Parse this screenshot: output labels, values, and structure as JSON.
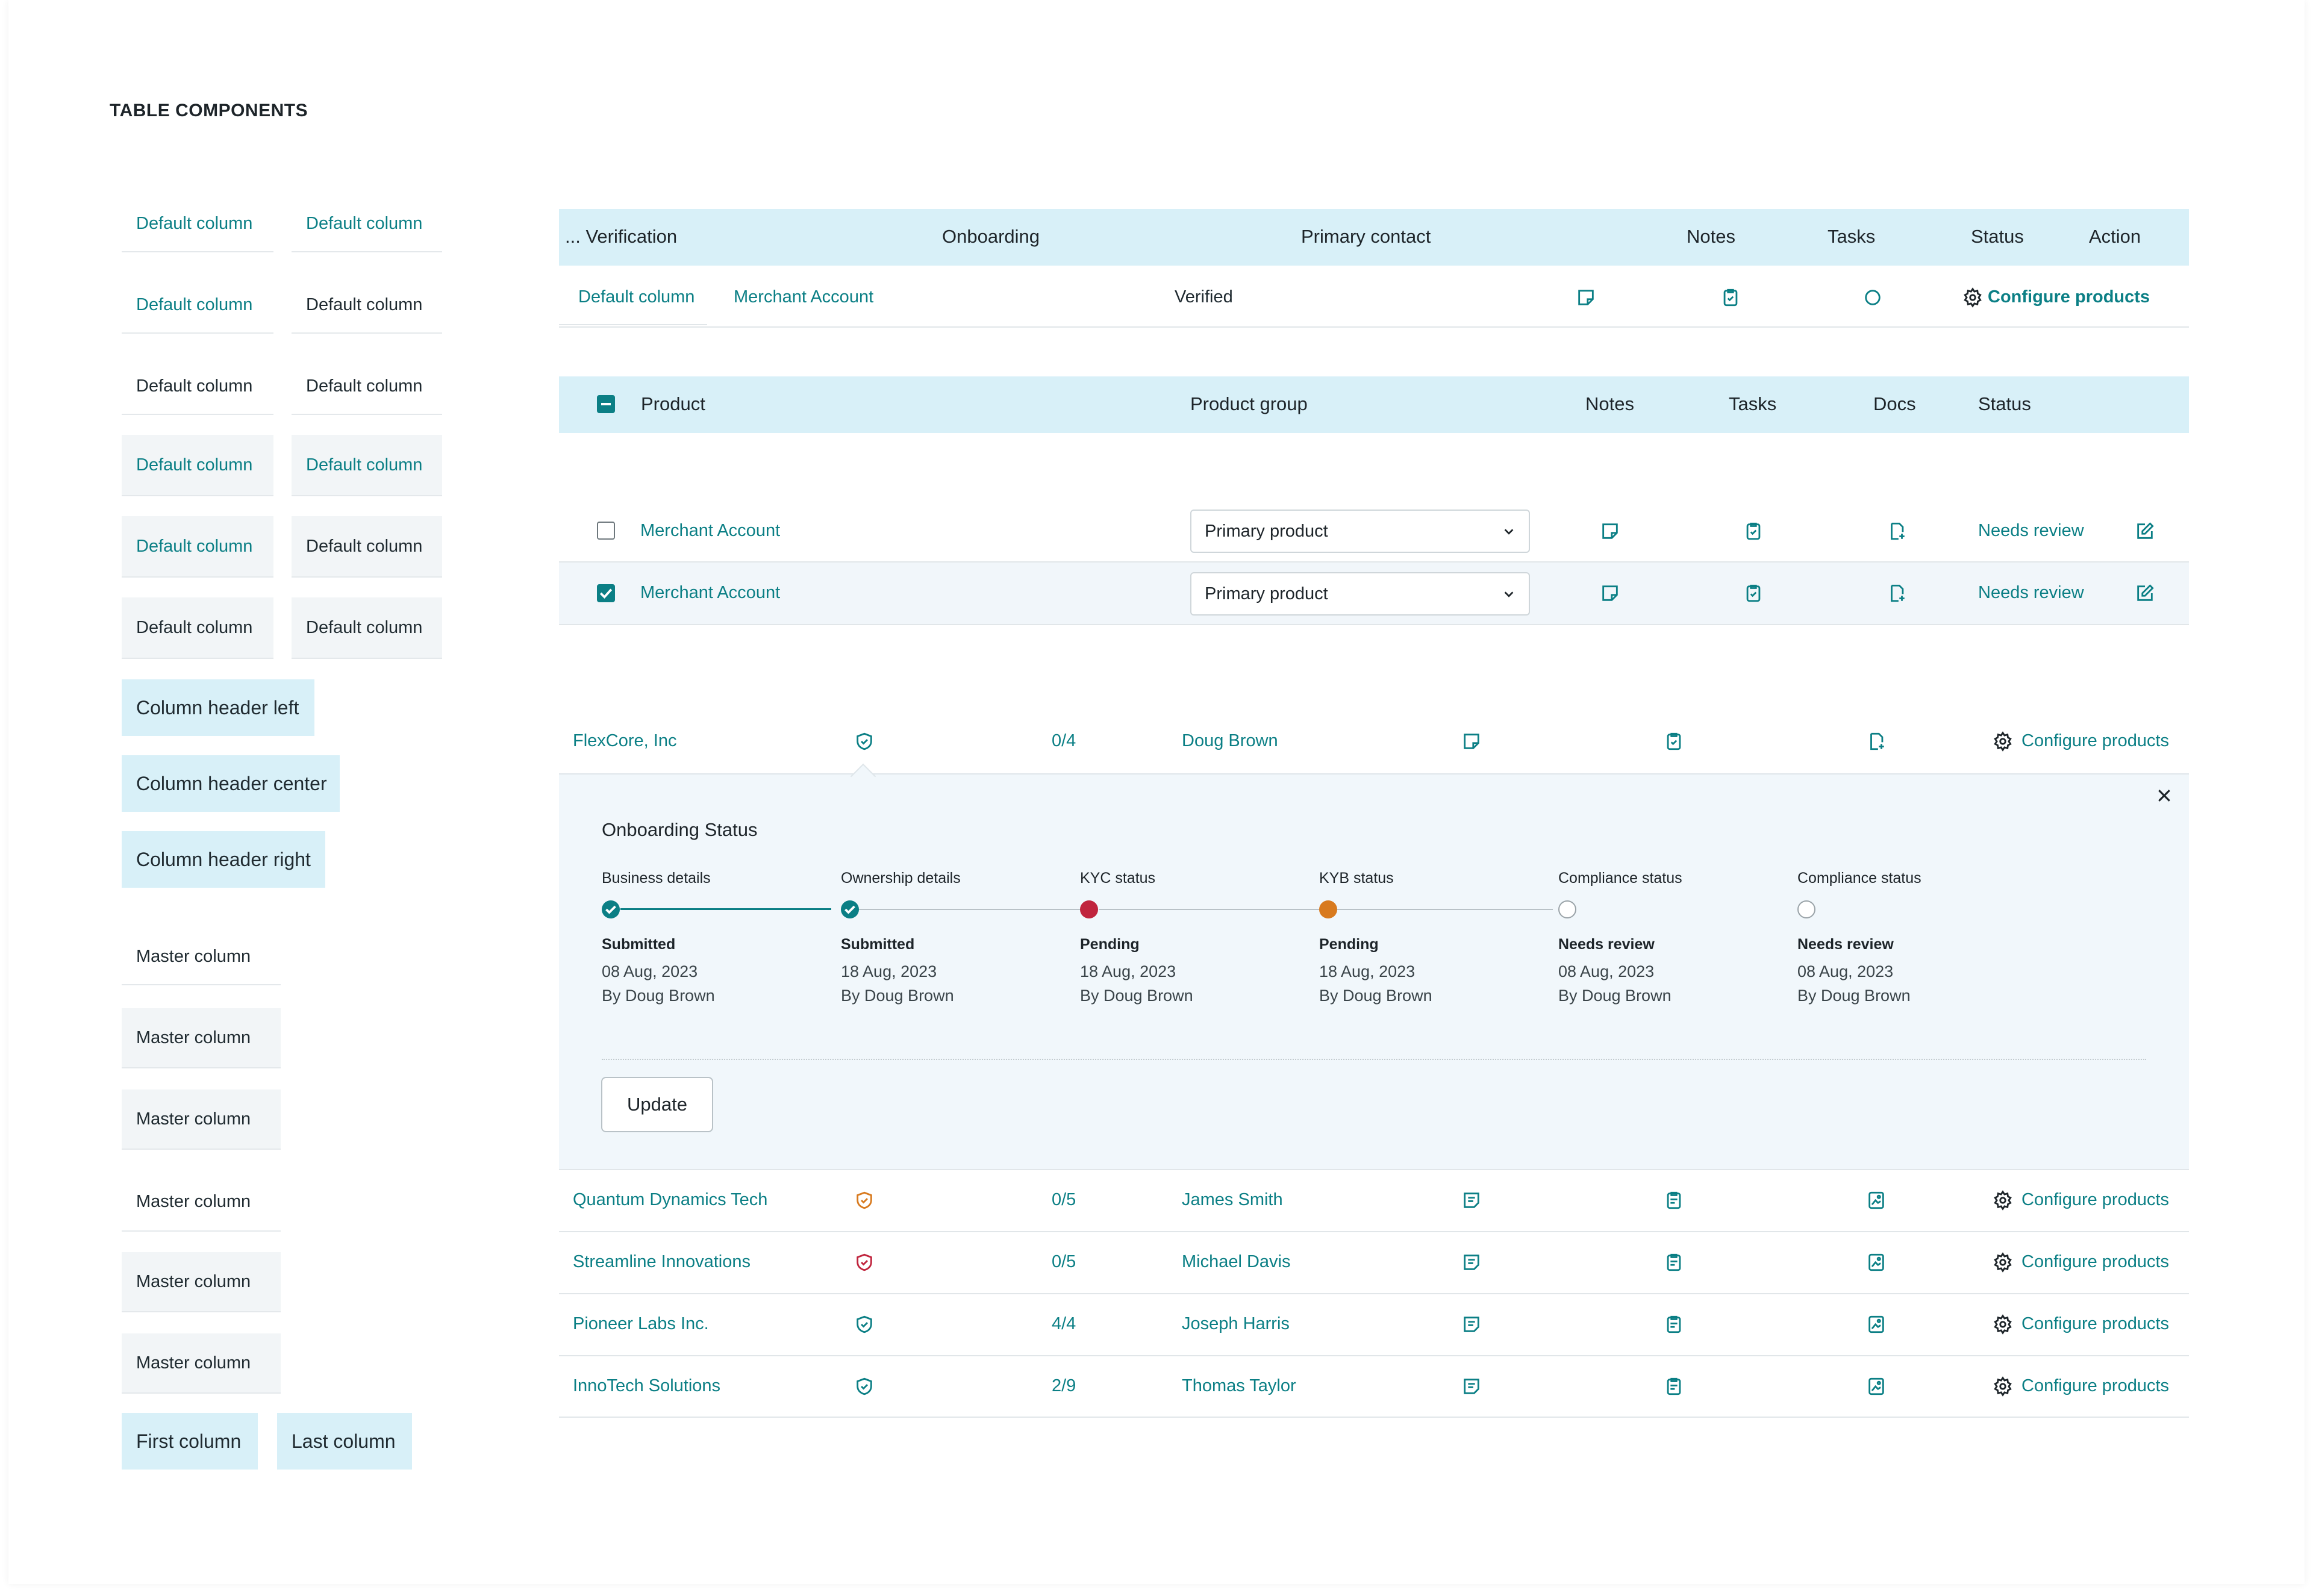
{
  "page": {
    "title": "TABLE COMPONENTS"
  },
  "colors": {
    "teal": "#0b7f85",
    "header_bg": "#d8f0f8",
    "red": "#c0243d",
    "orange": "#d87a1e",
    "gray": "#9aa3a8"
  },
  "components": {
    "default_cells": [
      [
        "Default column",
        "Default column"
      ],
      [
        "Default column",
        "Default column"
      ],
      [
        "Default column",
        "Default column"
      ],
      [
        "Default column",
        "Default column"
      ],
      [
        "Default column",
        "Default column"
      ],
      [
        "Default column",
        "Default column"
      ]
    ],
    "header_cells": [
      "Column header left",
      "Column header center",
      "Column header right"
    ],
    "master_cells": [
      "Master column",
      "Master column",
      "Master column",
      "Master column",
      "Master column",
      "Master column"
    ],
    "first_column": "First column",
    "last_column": "Last column"
  },
  "table1": {
    "headers": [
      "... Verification",
      "Onboarding",
      "Primary contact",
      "Notes",
      "Tasks",
      "Status",
      "Action"
    ],
    "row": {
      "col1": "Default column",
      "col2": "Merchant Account",
      "verification": "Verified",
      "action": "Configure products"
    },
    "icons": [
      "note-icon",
      "task-icon",
      "status-circle-icon",
      "gear-icon"
    ]
  },
  "table2": {
    "headers": [
      "Product",
      "Product group",
      "Notes",
      "Tasks",
      "Docs",
      "Status"
    ],
    "rows": [
      {
        "product": "Merchant Account",
        "group": "Primary product",
        "status": "Needs review",
        "checked": false
      },
      {
        "product": "Merchant Account",
        "group": "Primary product",
        "status": "Needs review",
        "checked": true
      }
    ]
  },
  "table3": {
    "rows": [
      {
        "company": "FlexCore, Inc",
        "shield": "teal",
        "progress": "0/4",
        "contact": "Doug Brown",
        "action": "Configure products"
      },
      {
        "company": "Quantum Dynamics Tech",
        "shield": "orange",
        "progress": "0/5",
        "contact": "James Smith",
        "action": "Configure products"
      },
      {
        "company": "Streamline Innovations",
        "shield": "red",
        "progress": "0/5",
        "contact": "Michael Davis",
        "action": "Configure products"
      },
      {
        "company": "Pioneer Labs Inc.",
        "shield": "teal",
        "progress": "4/4",
        "contact": "Joseph Harris",
        "action": "Configure products"
      },
      {
        "company": "InnoTech Solutions",
        "shield": "teal",
        "progress": "2/9",
        "contact": "Thomas Taylor",
        "action": "Configure products"
      }
    ],
    "expanded": {
      "title": "Onboarding Status",
      "steps": [
        {
          "label": "Business details",
          "status": "Submitted",
          "date": "08 Aug, 2023",
          "by": "By Doug Brown",
          "state": "done"
        },
        {
          "label": "Ownership details",
          "status": "Submitted",
          "date": "18 Aug, 2023",
          "by": "By Doug Brown",
          "state": "done"
        },
        {
          "label": "KYC status",
          "status": "Pending",
          "date": "18 Aug, 2023",
          "by": "By Doug Brown",
          "state": "pending-red"
        },
        {
          "label": "KYB status",
          "status": "Pending",
          "date": "18 Aug, 2023",
          "by": "By Doug Brown",
          "state": "pending-orange"
        },
        {
          "label": "Compliance status",
          "status": "Needs review",
          "date": "08 Aug, 2023",
          "by": "By Doug Brown",
          "state": "empty"
        },
        {
          "label": "Compliance status",
          "status": "Needs review",
          "date": "08 Aug, 2023",
          "by": "By Doug Brown",
          "state": "empty"
        }
      ],
      "update_label": "Update"
    }
  }
}
